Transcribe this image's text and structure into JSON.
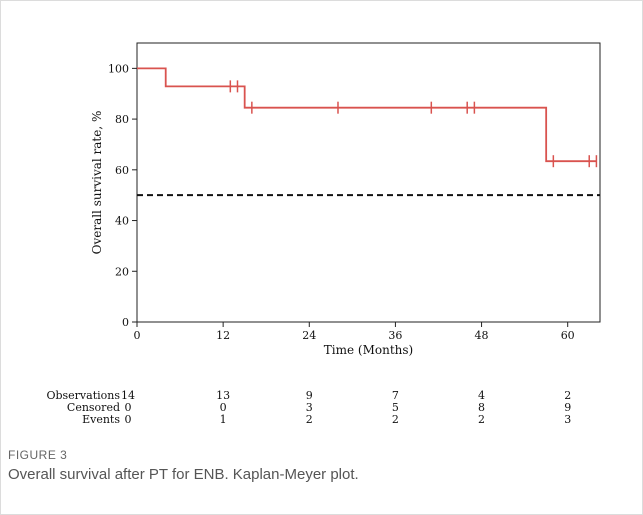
{
  "figure": {
    "label": "FIGURE 3",
    "caption": "Overall survival after PT for ENB. Kaplan-Meyer plot."
  },
  "colors": {
    "survival_curve": "#d9534f",
    "reference_line": "#111111",
    "axis": "#222222"
  },
  "chart_data": {
    "type": "line",
    "title": "",
    "xlabel": "Time (Months)",
    "ylabel": "Overall survival rate, %",
    "xlim": [
      0,
      64.5
    ],
    "ylim": [
      0,
      110
    ],
    "xticks": [
      0,
      12,
      24,
      36,
      48,
      60
    ],
    "yticks": [
      0,
      20,
      40,
      60,
      80,
      100
    ],
    "grid": false,
    "series": [
      {
        "style": "step",
        "x": [
          0,
          4,
          15,
          57,
          64
        ],
        "y": [
          100,
          92.9,
          84.5,
          63.4,
          63.4
        ]
      }
    ],
    "censor_marks": [
      {
        "x": 13,
        "y": 92.9
      },
      {
        "x": 14,
        "y": 92.9
      },
      {
        "x": 16,
        "y": 84.5
      },
      {
        "x": 28,
        "y": 84.5
      },
      {
        "x": 41,
        "y": 84.5
      },
      {
        "x": 46,
        "y": 84.5
      },
      {
        "x": 47,
        "y": 84.5
      },
      {
        "x": 58,
        "y": 63.4
      },
      {
        "x": 63,
        "y": 63.4
      },
      {
        "x": 64,
        "y": 63.4
      }
    ],
    "reference_line": {
      "y": 50,
      "style": "dashed"
    },
    "risk_table": {
      "times": [
        0,
        12,
        24,
        36,
        48,
        60
      ],
      "rows": [
        {
          "label": "Observations",
          "values": [
            "14",
            "13",
            "9",
            "7",
            "4",
            "2"
          ]
        },
        {
          "label": "Censored",
          "values": [
            "0",
            "0",
            "3",
            "5",
            "8",
            "9"
          ]
        },
        {
          "label": "Events",
          "values": [
            "0",
            "1",
            "2",
            "2",
            "2",
            "3"
          ]
        }
      ]
    }
  }
}
